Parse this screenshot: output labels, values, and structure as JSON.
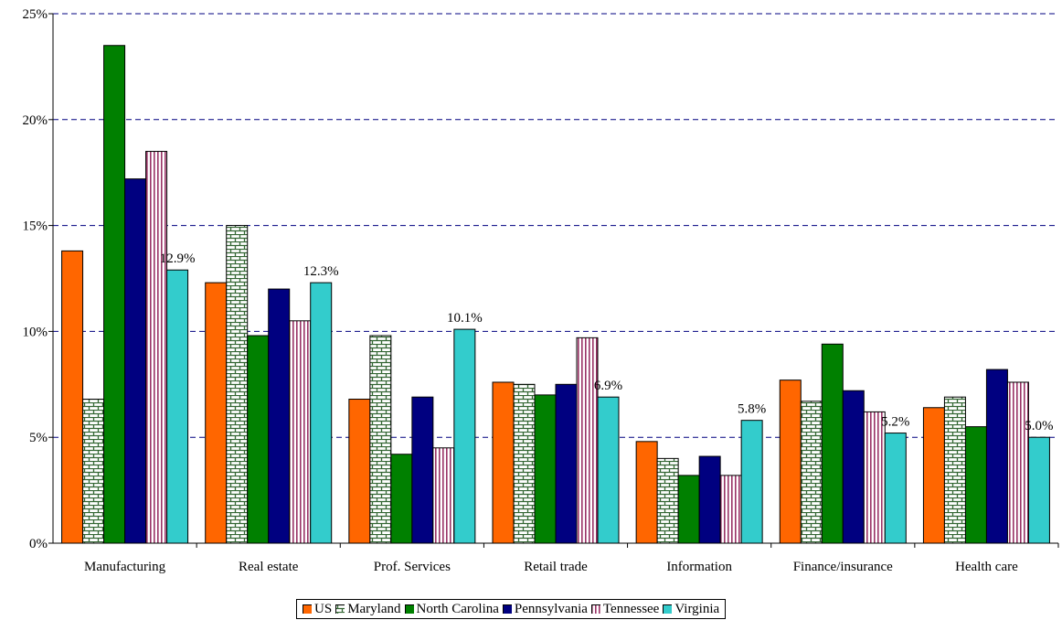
{
  "chart_data": {
    "type": "bar",
    "title": "",
    "xlabel": "",
    "ylabel": "",
    "ylim": [
      0,
      25
    ],
    "y_ticks": [
      "0%",
      "5%",
      "10%",
      "15%",
      "20%",
      "25%"
    ],
    "grid": "horizontal dashed",
    "legend_position": "bottom",
    "categories": [
      "Manufacturing",
      "Real estate",
      "Prof. Services",
      "Retail trade",
      "Information",
      "Finance/insurance",
      "Health care"
    ],
    "series": [
      {
        "name": "US",
        "color": "#ff6600",
        "pattern": "solid",
        "values": [
          13.8,
          12.3,
          6.8,
          7.6,
          4.8,
          7.7,
          6.4
        ]
      },
      {
        "name": "Maryland",
        "color": "#336633",
        "pattern": "brick",
        "values": [
          6.8,
          15.0,
          9.8,
          7.5,
          4.0,
          6.7,
          6.9
        ]
      },
      {
        "name": "North Carolina",
        "color": "#008000",
        "pattern": "solid",
        "values": [
          23.5,
          9.8,
          4.2,
          7.0,
          3.2,
          9.4,
          5.5
        ]
      },
      {
        "name": "Pennsylvania",
        "color": "#000080",
        "pattern": "solid",
        "values": [
          17.2,
          12.0,
          6.9,
          7.5,
          4.1,
          7.2,
          8.2
        ]
      },
      {
        "name": "Tennessee",
        "color": "#993366",
        "pattern": "vertical-stripes",
        "values": [
          18.5,
          10.5,
          4.5,
          9.7,
          3.2,
          6.2,
          7.6
        ]
      },
      {
        "name": "Virginia",
        "color": "#33cccc",
        "pattern": "solid",
        "values": [
          12.9,
          12.3,
          10.1,
          6.9,
          5.8,
          5.2,
          5.0
        ]
      }
    ],
    "data_labels": [
      {
        "series": "Virginia",
        "labels": [
          "12.9%",
          "12.3%",
          "10.1%",
          "6.9%",
          "5.8%",
          "5.2%",
          "5.0%"
        ]
      }
    ]
  }
}
